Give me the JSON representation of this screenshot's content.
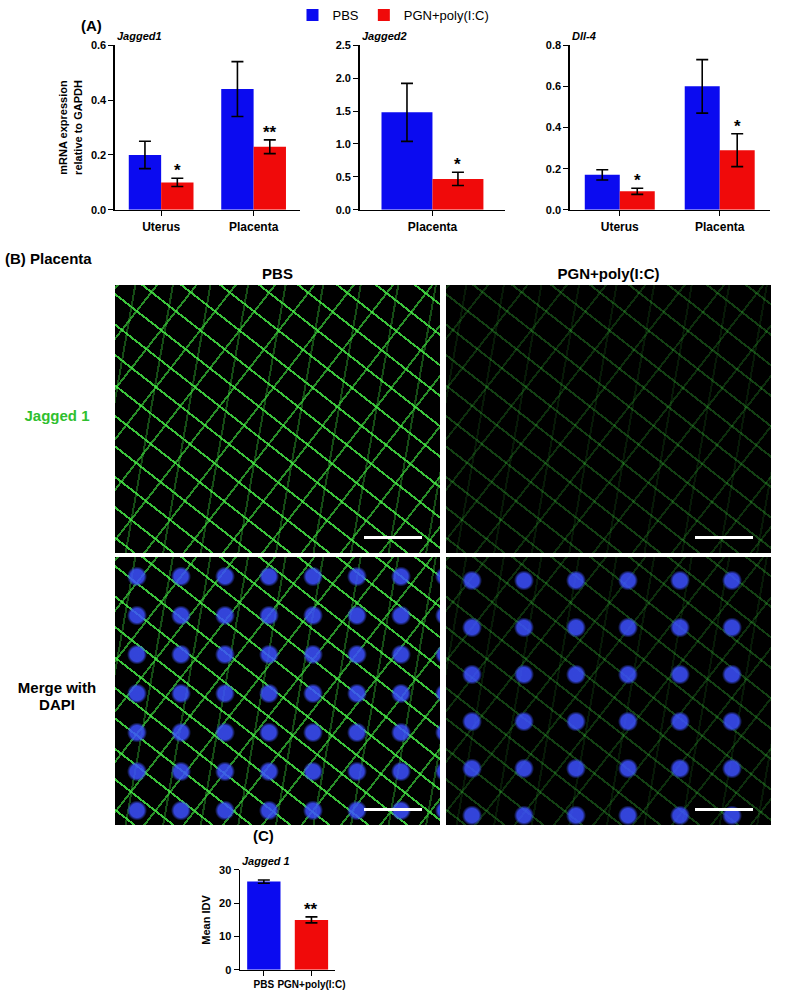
{
  "panels": {
    "A": "(A)",
    "C": "(C)",
    "B": {
      "title": "(B) Placenta",
      "columns": [
        "PBS",
        "PGN+poly(I:C)"
      ],
      "rows": [
        "Jagged 1",
        "Merge with DAPI"
      ]
    }
  },
  "chart_data": [
    {
      "type": "bar",
      "title": "Jagged1",
      "y_label": [
        "mRNA expression",
        "relative to GAPDH"
      ],
      "categories": [
        "Uterus",
        "Placenta"
      ],
      "series": [
        {
          "name": "PBS",
          "color": "#0b0bf0",
          "values": [
            0.2,
            0.44
          ],
          "errors": [
            0.05,
            0.1
          ]
        },
        {
          "name": "PGN+poly(I:C)",
          "color": "#f00a0a",
          "values": [
            0.1,
            0.23
          ],
          "errors": [
            0.015,
            0.025
          ],
          "significance": [
            "*",
            "**"
          ]
        }
      ],
      "ylim": [
        0,
        0.6
      ],
      "yticks": [
        {
          "value": 0,
          "label": "0.0"
        },
        0.2,
        0.4,
        0.6
      ],
      "legend": "top"
    },
    {
      "type": "bar",
      "title": "Jagged2",
      "categories": [
        "Placenta"
      ],
      "series": [
        {
          "name": "PBS",
          "color": "#0b0bf0",
          "values": [
            1.48
          ],
          "errors": [
            0.44
          ]
        },
        {
          "name": "PGN+poly(I:C)",
          "color": "#f00a0a",
          "values": [
            0.47
          ],
          "errors": [
            0.1
          ],
          "significance": [
            "*"
          ]
        }
      ],
      "ylim": [
        0,
        2.5
      ],
      "yticks": [
        {
          "value": 0,
          "label": "0.0"
        },
        0.5,
        {
          "value": 1,
          "label": "1.0"
        },
        1.5,
        {
          "value": 2,
          "label": "2.0"
        },
        2.5
      ]
    },
    {
      "type": "bar",
      "title": "Dll-4",
      "categories": [
        "Uterus",
        "Placenta"
      ],
      "series": [
        {
          "name": "PBS",
          "color": "#0b0bf0",
          "values": [
            0.17,
            0.6
          ],
          "errors": [
            0.025,
            0.13
          ]
        },
        {
          "name": "PGN+poly(I:C)",
          "color": "#f00a0a",
          "values": [
            0.09,
            0.29
          ],
          "errors": [
            0.015,
            0.08
          ],
          "significance": [
            "*",
            "*"
          ]
        }
      ],
      "ylim": [
        0,
        0.8
      ],
      "yticks": [
        {
          "value": 0,
          "label": "0.0"
        },
        0.2,
        0.4,
        0.6,
        0.8
      ]
    },
    {
      "type": "bar",
      "title": "Jagged 1",
      "y_label": [
        "Mean IDV"
      ],
      "categories": [
        "PBS",
        "PGN+poly(I:C)"
      ],
      "values": [
        26.5,
        15.0
      ],
      "errors": [
        0.5,
        0.9
      ],
      "colors": [
        "#0b0bf0",
        "#f00a0a"
      ],
      "significance": [
        null,
        "**"
      ],
      "ylim": [
        0,
        30
      ],
      "yticks": [
        0,
        10,
        20,
        30
      ]
    }
  ]
}
